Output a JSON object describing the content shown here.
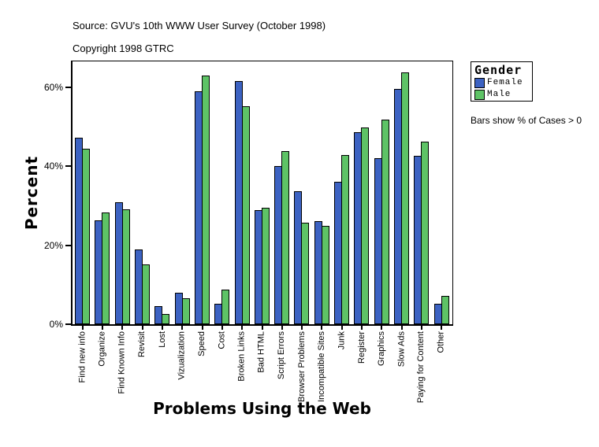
{
  "header": {
    "source_line": "Source: GVU's 10th WWW User Survey (October 1998)",
    "copyright_line": "Copyright 1998 GTRC"
  },
  "legend": {
    "title": "Gender",
    "items": [
      {
        "label": "Female",
        "color": "#3C62C2"
      },
      {
        "label": "Male",
        "color": "#5EC366"
      }
    ]
  },
  "note": "Bars show % of Cases > 0",
  "chart_data": {
    "type": "bar",
    "title": "",
    "xlabel": "Problems Using the Web",
    "ylabel": "Percent",
    "ylim": [
      0,
      66.6
    ],
    "grid": false,
    "legend_position": "outside-top-right",
    "yticks": [
      {
        "value": 0,
        "label": "0%"
      },
      {
        "value": 20,
        "label": "20%"
      },
      {
        "value": 40,
        "label": "40%"
      },
      {
        "value": 60,
        "label": "60%"
      }
    ],
    "categories": [
      "Find new info",
      "Organize",
      "Find Known Info",
      "Revisit",
      "Lost",
      "Vizualization",
      "Speed",
      "Cost",
      "Broken Links",
      "Bad HTML",
      "Script Errors",
      "Browser Problems",
      "Incompatible Sites",
      "Junk",
      "Register",
      "Graphics",
      "Slow Ads",
      "Paying for Content",
      "Other"
    ],
    "series": [
      {
        "name": "Female",
        "color": "#3C62C2",
        "values": [
          47.3,
          26.4,
          31.0,
          19.0,
          4.5,
          7.9,
          59.0,
          5.2,
          61.7,
          28.9,
          40.0,
          33.6,
          26.2,
          36.0,
          48.6,
          42.0,
          59.6,
          42.6,
          5.1
        ]
      },
      {
        "name": "Male",
        "color": "#5EC366",
        "values": [
          44.5,
          28.4,
          29.1,
          15.2,
          2.6,
          6.6,
          63.0,
          8.7,
          55.2,
          29.5,
          43.8,
          25.7,
          25.0,
          42.9,
          49.8,
          51.8,
          63.9,
          46.3,
          7.2
        ]
      }
    ]
  }
}
